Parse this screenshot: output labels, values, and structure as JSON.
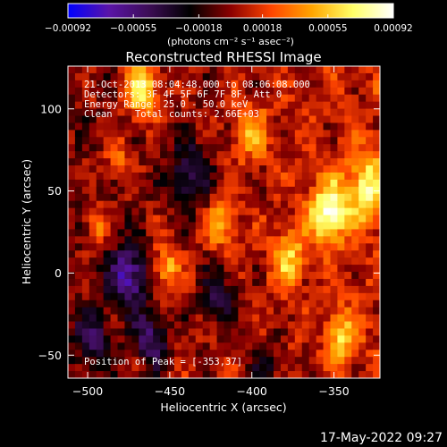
{
  "chart_data": {
    "type": "heatmap",
    "title": "Reconstructed RHESSI Image",
    "xlabel": "Heliocentric X (arcsec)",
    "ylabel": "Heliocentric Y (arcsec)",
    "xlim": [
      -512,
      -322
    ],
    "ylim": [
      -64,
      126
    ],
    "x_ticks": [
      -500,
      -450,
      -400,
      -350
    ],
    "x_tick_labels": [
      "−500",
      "−450",
      "−400",
      "−350"
    ],
    "y_ticks": [
      -50,
      0,
      50,
      100
    ],
    "y_tick_labels": [
      "−50",
      "0",
      "50",
      "100"
    ],
    "colorbar": {
      "min": -0.00092,
      "max": 0.00092,
      "ticks": [
        -0.00092,
        -0.00055,
        -0.00018,
        0.00018,
        0.00055,
        0.00092
      ],
      "tick_labels": [
        "−0.00092",
        "−0.00055",
        "−0.00018",
        "0.00018",
        "0.00055",
        "0.00092"
      ],
      "unit": "(photons cm⁻² s⁻¹ asec⁻²)",
      "colors": [
        "#0000ff",
        "#5a14a8",
        "#3c0d55",
        "#000000",
        "#8b0000",
        "#ff4500",
        "#ffa500",
        "#ffff66",
        "#ffffff"
      ]
    },
    "annotations": [
      "21-Oct-2013 08:04:48.000 to 08:06:08.000",
      "Detectors: 3F 4F 5F 6F 7F 8F, Att 0",
      "Energy Range: 25.0 - 50.0 keV",
      "Clean    Total counts: 2.66E+03"
    ],
    "peak_label": "Position of Peak = [-353,37]",
    "peak": [
      -353,
      37
    ]
  },
  "footer": {
    "timestamp": "17-May-2022 09:27"
  }
}
